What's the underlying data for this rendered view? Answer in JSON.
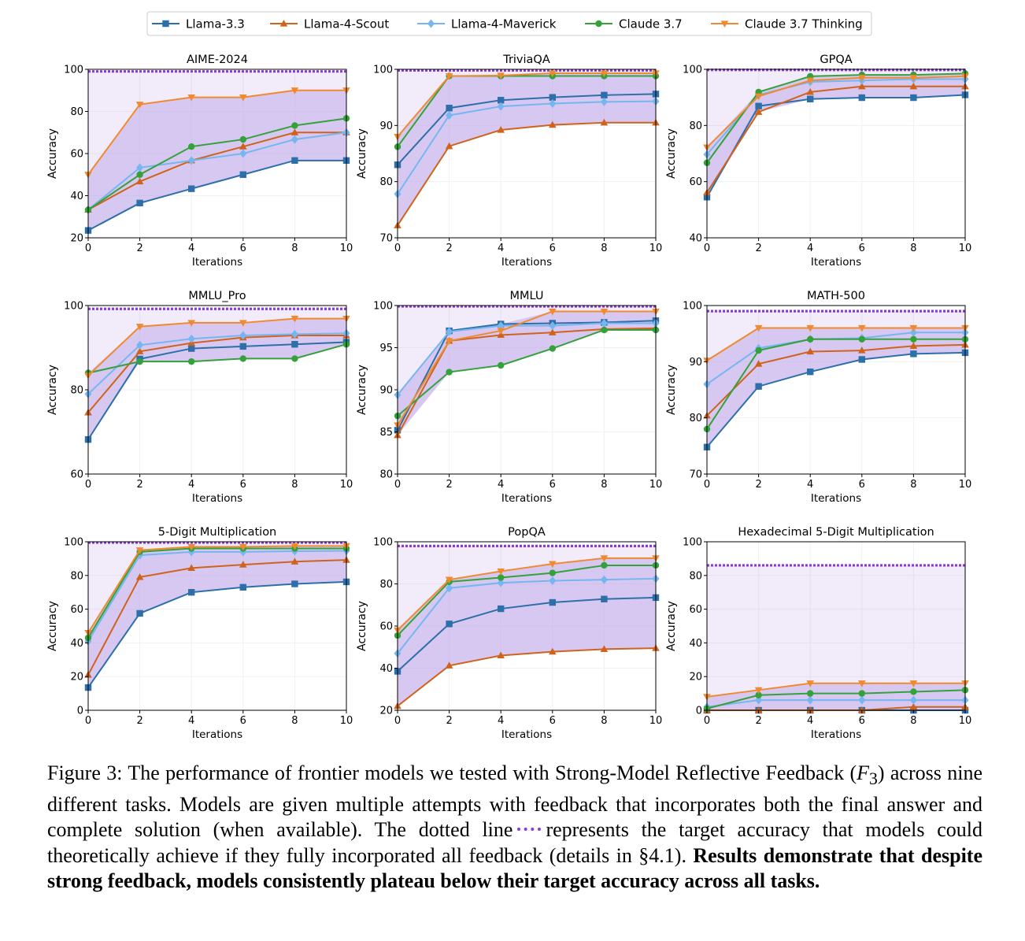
{
  "legend": [
    {
      "name": "Llama-3.3",
      "color": "#2d6fa8",
      "marker": "square"
    },
    {
      "name": "Llama-4-Scout",
      "color": "#d0631c",
      "marker": "triangle-up"
    },
    {
      "name": "Llama-4-Maverick",
      "color": "#76b6f0",
      "marker": "diamond"
    },
    {
      "name": "Claude 3.7",
      "color": "#35a13a",
      "marker": "circle"
    },
    {
      "name": "Claude 3.7 Thinking",
      "color": "#f08a30",
      "marker": "triangle-down"
    }
  ],
  "target_line_color": "#8a3ad6",
  "fill_color": "#b79ae8",
  "chart_data": [
    {
      "type": "line",
      "title": "AIME-2024",
      "xlabel": "Iterations",
      "ylabel": "Accuracy",
      "x": [
        0,
        2,
        4,
        6,
        8,
        10
      ],
      "xticks": [
        0,
        2,
        4,
        6,
        8,
        10
      ],
      "ylim": [
        20,
        100
      ],
      "yticks": [
        20,
        40,
        60,
        80,
        100
      ],
      "target": 99,
      "series": [
        {
          "name": "Llama-3.3",
          "values": [
            23.5,
            36.5,
            43.3,
            50.0,
            56.7,
            56.7
          ]
        },
        {
          "name": "Llama-4-Scout",
          "values": [
            33.3,
            46.7,
            56.7,
            63.3,
            70.0,
            70.0
          ]
        },
        {
          "name": "Llama-4-Maverick",
          "values": [
            33.3,
            53.3,
            56.7,
            60.0,
            66.7,
            70.0
          ]
        },
        {
          "name": "Claude 3.7",
          "values": [
            33.3,
            50.0,
            63.3,
            66.7,
            73.3,
            76.7
          ]
        },
        {
          "name": "Claude 3.7 Thinking",
          "values": [
            50.0,
            83.3,
            86.7,
            86.7,
            90.0,
            90.0
          ]
        }
      ]
    },
    {
      "type": "line",
      "title": "TriviaQA",
      "xlabel": "Iterations",
      "ylabel": "Accuracy",
      "x": [
        0,
        2,
        4,
        6,
        8,
        10
      ],
      "xticks": [
        0,
        2,
        4,
        6,
        8,
        10
      ],
      "ylim": [
        70,
        100
      ],
      "yticks": [
        70,
        80,
        90,
        100
      ],
      "target": 99.8,
      "series": [
        {
          "name": "Llama-3.3",
          "values": [
            83.0,
            93.1,
            94.5,
            95.0,
            95.4,
            95.6
          ]
        },
        {
          "name": "Llama-4-Scout",
          "values": [
            72.2,
            86.3,
            89.2,
            90.1,
            90.5,
            90.5
          ]
        },
        {
          "name": "Llama-4-Maverick",
          "values": [
            77.8,
            91.8,
            93.4,
            93.9,
            94.2,
            94.3
          ]
        },
        {
          "name": "Claude 3.7",
          "values": [
            86.2,
            98.8,
            98.8,
            98.8,
            98.8,
            98.8
          ]
        },
        {
          "name": "Claude 3.7 Thinking",
          "values": [
            88.0,
            98.8,
            98.9,
            99.3,
            99.3,
            99.3
          ]
        }
      ]
    },
    {
      "type": "line",
      "title": "GPQA",
      "xlabel": "Iterations",
      "ylabel": "Accuracy",
      "x": [
        0,
        2,
        4,
        6,
        8,
        10
      ],
      "xticks": [
        0,
        2,
        4,
        6,
        8,
        10
      ],
      "ylim": [
        40,
        100
      ],
      "yticks": [
        40,
        60,
        80,
        100
      ],
      "target": 99.8,
      "series": [
        {
          "name": "Llama-3.3",
          "values": [
            54.5,
            86.9,
            89.4,
            89.9,
            89.9,
            90.9
          ]
        },
        {
          "name": "Llama-4-Scout",
          "values": [
            56.1,
            84.8,
            91.9,
            93.9,
            93.9,
            93.9
          ]
        },
        {
          "name": "Llama-4-Maverick",
          "values": [
            69.7,
            90.9,
            95.5,
            96.0,
            96.5,
            96.5
          ]
        },
        {
          "name": "Claude 3.7",
          "values": [
            66.7,
            91.9,
            97.5,
            98.0,
            98.0,
            98.5
          ]
        },
        {
          "name": "Claude 3.7 Thinking",
          "values": [
            72.2,
            90.4,
            96.0,
            97.0,
            97.0,
            97.5
          ]
        }
      ]
    },
    {
      "type": "line",
      "title": "MMLU_Pro",
      "xlabel": "Iterations",
      "ylabel": "Accuracy",
      "x": [
        0,
        2,
        4,
        6,
        8,
        10
      ],
      "xticks": [
        0,
        2,
        4,
        6,
        8,
        10
      ],
      "ylim": [
        60,
        100
      ],
      "yticks": [
        60,
        80,
        100
      ],
      "target": 99.2,
      "series": [
        {
          "name": "Llama-3.3",
          "values": [
            68.2,
            87.3,
            89.8,
            90.3,
            90.8,
            91.3
          ]
        },
        {
          "name": "Llama-4-Scout",
          "values": [
            74.6,
            89.1,
            91.1,
            92.4,
            92.9,
            92.9
          ]
        },
        {
          "name": "Llama-4-Maverick",
          "values": [
            79.0,
            90.6,
            92.1,
            92.9,
            93.2,
            93.4
          ]
        },
        {
          "name": "Claude 3.7",
          "values": [
            84.0,
            86.7,
            86.7,
            87.4,
            87.4,
            90.8
          ]
        },
        {
          "name": "Claude 3.7 Thinking",
          "values": [
            83.4,
            95.0,
            95.9,
            95.9,
            96.9,
            96.9
          ]
        }
      ]
    },
    {
      "type": "line",
      "title": "MMLU",
      "xlabel": "Iterations",
      "ylabel": "Accuracy",
      "x": [
        0,
        2,
        4,
        6,
        8,
        10
      ],
      "xticks": [
        0,
        2,
        4,
        6,
        8,
        10
      ],
      "ylim": [
        80,
        100
      ],
      "yticks": [
        80,
        85,
        90,
        95,
        100
      ],
      "target": 99.9,
      "series": [
        {
          "name": "Llama-3.3",
          "values": [
            85.2,
            97.0,
            97.8,
            97.9,
            98.0,
            98.2
          ]
        },
        {
          "name": "Llama-4-Scout",
          "values": [
            84.6,
            95.8,
            96.5,
            96.8,
            97.2,
            97.3
          ]
        },
        {
          "name": "Llama-4-Maverick",
          "values": [
            89.4,
            96.9,
            97.6,
            97.6,
            97.9,
            97.9
          ]
        },
        {
          "name": "Claude 3.7",
          "values": [
            86.9,
            92.1,
            92.9,
            94.9,
            97.1,
            97.1
          ]
        },
        {
          "name": "Claude 3.7 Thinking",
          "values": [
            85.8,
            95.8,
            97.0,
            99.3,
            99.3,
            99.3
          ]
        }
      ]
    },
    {
      "type": "line",
      "title": "MATH-500",
      "xlabel": "Iterations",
      "ylabel": "Accuracy",
      "x": [
        0,
        2,
        4,
        6,
        8,
        10
      ],
      "xticks": [
        0,
        2,
        4,
        6,
        8,
        10
      ],
      "ylim": [
        70,
        100
      ],
      "yticks": [
        70,
        80,
        90,
        100
      ],
      "target": 99,
      "series": [
        {
          "name": "Llama-3.3",
          "values": [
            74.8,
            85.6,
            88.2,
            90.4,
            91.4,
            91.6
          ]
        },
        {
          "name": "Llama-4-Scout",
          "values": [
            80.4,
            89.6,
            91.8,
            92.0,
            92.8,
            93.0
          ]
        },
        {
          "name": "Llama-4-Maverick",
          "values": [
            86.0,
            92.4,
            94.0,
            94.2,
            95.2,
            95.2
          ]
        },
        {
          "name": "Claude 3.7",
          "values": [
            78.0,
            92.0,
            94.0,
            94.0,
            94.0,
            94.0
          ]
        },
        {
          "name": "Claude 3.7 Thinking",
          "values": [
            90.2,
            96.0,
            96.0,
            96.0,
            96.0,
            96.0
          ]
        }
      ]
    },
    {
      "type": "line",
      "title": "5-Digit Multiplication",
      "xlabel": "Iterations",
      "ylabel": "Accuracy",
      "x": [
        0,
        2,
        4,
        6,
        8,
        10
      ],
      "xticks": [
        0,
        2,
        4,
        6,
        8,
        10
      ],
      "ylim": [
        0,
        100
      ],
      "yticks": [
        0,
        20,
        40,
        60,
        80,
        100
      ],
      "target": 99.5,
      "series": [
        {
          "name": "Llama-3.3",
          "values": [
            13.5,
            57.5,
            70.0,
            73.0,
            75.0,
            76.2
          ]
        },
        {
          "name": "Llama-4-Scout",
          "values": [
            21.0,
            79.0,
            84.4,
            86.4,
            88.2,
            89.2
          ]
        },
        {
          "name": "Llama-4-Maverick",
          "values": [
            41.0,
            92.0,
            94.0,
            94.0,
            94.4,
            94.6
          ]
        },
        {
          "name": "Claude 3.7",
          "values": [
            43.0,
            94.0,
            96.0,
            96.0,
            96.0,
            96.0
          ]
        },
        {
          "name": "Claude 3.7 Thinking",
          "values": [
            46.0,
            95.0,
            97.0,
            97.0,
            97.5,
            97.5
          ]
        }
      ]
    },
    {
      "type": "line",
      "title": "PopQA",
      "xlabel": "Iterations",
      "ylabel": "Accuracy",
      "x": [
        0,
        2,
        4,
        6,
        8,
        10
      ],
      "xticks": [
        0,
        2,
        4,
        6,
        8,
        10
      ],
      "ylim": [
        20,
        100
      ],
      "yticks": [
        20,
        40,
        60,
        80,
        100
      ],
      "target": 98,
      "series": [
        {
          "name": "Llama-3.3",
          "values": [
            38.5,
            61.0,
            68.2,
            71.2,
            72.8,
            73.5
          ]
        },
        {
          "name": "Llama-4-Scout",
          "values": [
            22.0,
            41.2,
            46.0,
            47.8,
            49.0,
            49.5
          ]
        },
        {
          "name": "Llama-4-Maverick",
          "values": [
            47.0,
            78.0,
            80.5,
            81.5,
            82.0,
            82.5
          ]
        },
        {
          "name": "Claude 3.7",
          "values": [
            55.5,
            81.0,
            83.0,
            85.2,
            88.8,
            88.8
          ]
        },
        {
          "name": "Claude 3.7 Thinking",
          "values": [
            58.0,
            82.0,
            86.0,
            89.5,
            92.2,
            92.2
          ]
        }
      ]
    },
    {
      "type": "line",
      "title": "Hexadecimal 5-Digit Multiplication",
      "xlabel": "Iterations",
      "ylabel": "Accuracy",
      "x": [
        0,
        2,
        4,
        6,
        8,
        10
      ],
      "xticks": [
        0,
        2,
        4,
        6,
        8,
        10
      ],
      "ylim": [
        0,
        100
      ],
      "yticks": [
        0,
        20,
        40,
        60,
        80,
        100
      ],
      "target": 86,
      "series": [
        {
          "name": "Llama-3.3",
          "values": [
            0,
            0,
            0,
            0,
            0,
            0
          ]
        },
        {
          "name": "Llama-4-Scout",
          "values": [
            0,
            0,
            0,
            0,
            2,
            2
          ]
        },
        {
          "name": "Llama-4-Maverick",
          "values": [
            2,
            6,
            6,
            6,
            6,
            6
          ]
        },
        {
          "name": "Claude 3.7",
          "values": [
            1,
            9,
            10,
            10,
            11,
            12
          ]
        },
        {
          "name": "Claude 3.7 Thinking",
          "values": [
            8,
            12,
            16,
            16,
            16,
            16
          ]
        }
      ]
    }
  ],
  "caption": {
    "part1": "Figure 3: The performance of frontier models we tested with Strong-Model Reflective Feedback (",
    "math_symbol": "F",
    "math_sub": "3",
    "part2": ") across nine different tasks. Models are given multiple attempts with feedback that incorporates both the final answer and complete solution (when available). The dotted line",
    "part3": "represents the target accuracy that models could theoretically achieve if they fully incorporated all feedback (details in §4.1).",
    "bold": "Results demonstrate that despite strong feedback, models consistently plateau below their target accuracy across all tasks."
  }
}
